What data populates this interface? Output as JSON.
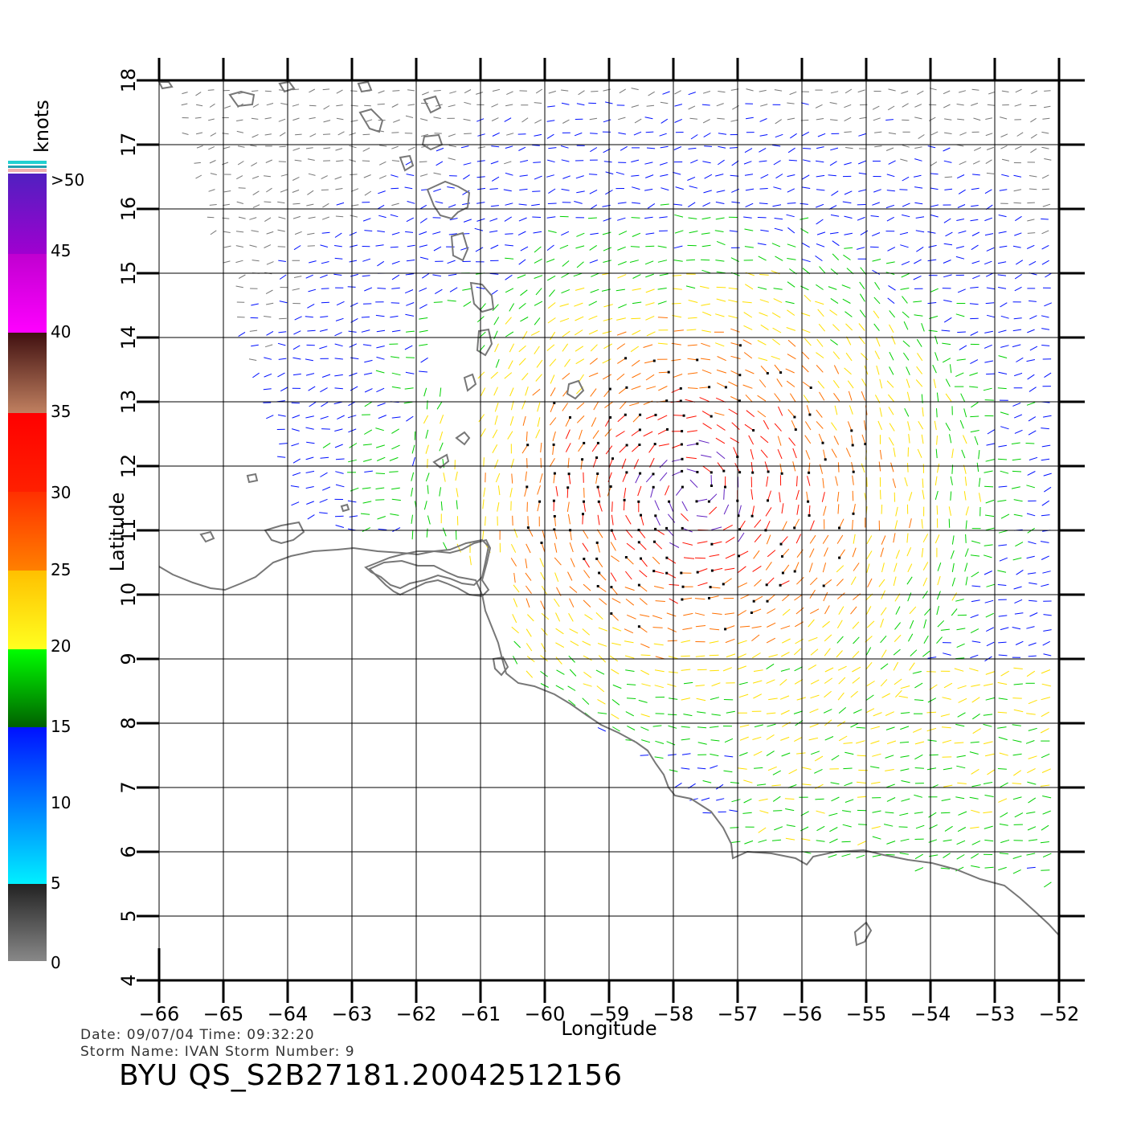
{
  "legend": {
    "title": "knots",
    "labels": [
      ">50",
      "45",
      "40",
      "35",
      "30",
      "25",
      "20",
      "15",
      "10",
      "5",
      "0"
    ],
    "colors": {
      "gray": "#777777",
      "cyan": "#00f0ff",
      "blue": "#0010ff",
      "green": "#00d000",
      "yellow": "#ffe000",
      "orange": "#ff7000",
      "red": "#ff1000",
      "brown": "#603020",
      "magenta": "#ff00ff",
      "purple": "#6020c0"
    }
  },
  "axes": {
    "xlabel": "Longitude",
    "ylabel": "Latitude",
    "x_ticks": [
      "-66",
      "-65",
      "-64",
      "-63",
      "-62",
      "-61",
      "-60",
      "-59",
      "-58",
      "-57",
      "-56",
      "-55",
      "-54",
      "-53",
      "-52"
    ],
    "y_ticks": [
      "4",
      "5",
      "6",
      "7",
      "8",
      "9",
      "10",
      "11",
      "12",
      "13",
      "14",
      "15",
      "16",
      "17",
      "18"
    ],
    "lon_range": [
      -66,
      -52
    ],
    "lat_range": [
      4,
      18
    ]
  },
  "footer": {
    "line1": "Date: 09/07/04   Time: 09:32:20",
    "line2": "Storm Name: IVAN   Storm Number: 9",
    "product_id": "BYU QS_S2B27181.20042512156"
  }
}
